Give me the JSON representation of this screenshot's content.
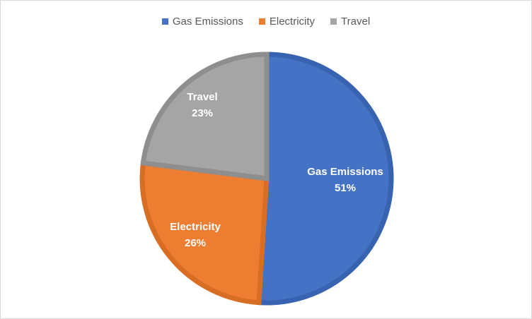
{
  "chart_data": {
    "type": "pie",
    "title": "",
    "categories": [
      "Gas Emissions",
      "Electricity",
      "Travel"
    ],
    "values": [
      51,
      26,
      23
    ],
    "value_labels": [
      "51%",
      "26%",
      "23%"
    ],
    "colors": [
      "#4472C4",
      "#ED7D31",
      "#A5A5A5"
    ],
    "legend_position": "top"
  }
}
